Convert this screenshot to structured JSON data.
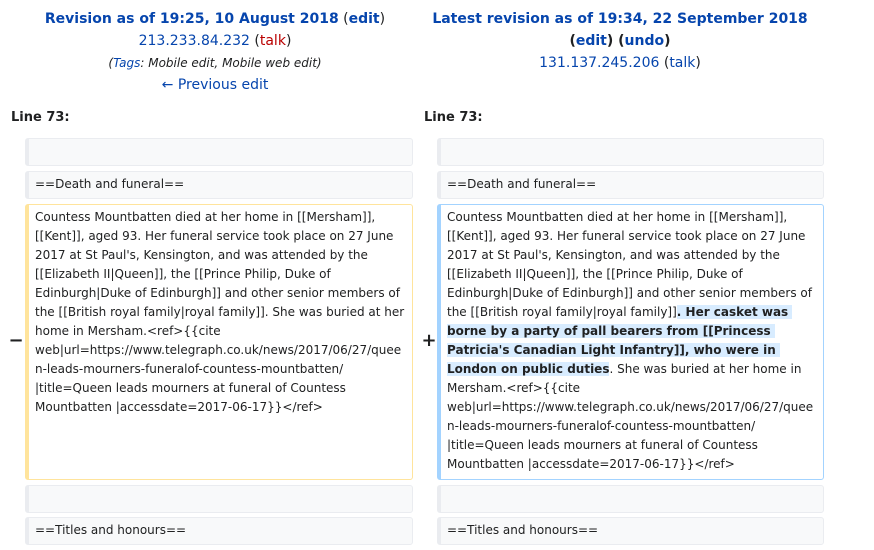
{
  "left": {
    "revision_title": "Revision as of 19:25, 10 August 2018",
    "edit_label": "edit",
    "user_ip": "213.233.84.232",
    "talk_label": "talk",
    "tags_prefix": "Tags",
    "tags": "Mobile edit, Mobile web edit",
    "previous_edit": "← Previous edit",
    "line_label": "Line 73:",
    "marker": "−",
    "blank_line": "",
    "heading_line": "==Death and funeral==",
    "changed_text": "Countess Mountbatten died at her home in [[Mersham]], [[Kent]], aged 93. Her funeral service took place on 27 June 2017 at St Paul's, Kensington, and was attended by the [[Elizabeth II|Queen]], the [[Prince Philip, Duke of Edinburgh|Duke of Edinburgh]] and other senior members of the [[British royal family|royal family]]. She was buried at her home in Mersham.<ref>{{cite web|url=https://www.telegraph.co.uk/news/2017/06/27/queen-leads-mourners-funeralof-countess-mountbatten/ |title=Queen leads mourners at funeral of Countess Mountbatten |accessdate=2017-06-17}}</ref>",
    "blank_line_2": "",
    "titles_line": "==Titles and honours=="
  },
  "right": {
    "revision_title": "Latest revision as of 19:34, 22 September 2018",
    "edit_label": "edit",
    "undo_label": "undo",
    "user_ip": "131.137.245.206",
    "talk_label": "talk",
    "line_label": "Line 73:",
    "marker": "+",
    "blank_line": "",
    "heading_line": "==Death and funeral==",
    "changed_text_before": "Countess Mountbatten died at her home in [[Mersham]], [[Kent]], aged 93. Her funeral service took place on 27 June 2017 at St Paul's, Kensington, and was attended by the [[Elizabeth II|Queen]], the [[Prince Philip, Duke of Edinburgh|Duke of Edinburgh]] and other senior members of the [[British royal family|royal family]]",
    "changed_text_inserted": ". Her casket was borne by a party of pall bearers from [[Princess Patricia's Canadian Light Infantry]], who were in London on public duties",
    "changed_text_after": ". She was buried at her home in Mersham.<ref>{{cite web|url=https://www.telegraph.co.uk/news/2017/06/27/queen-leads-mourners-funeralof-countess-mountbatten/ |title=Queen leads mourners at funeral of Countess Mountbatten |accessdate=2017-06-17}}</ref>",
    "blank_line_2": "",
    "titles_line": "==Titles and honours=="
  }
}
